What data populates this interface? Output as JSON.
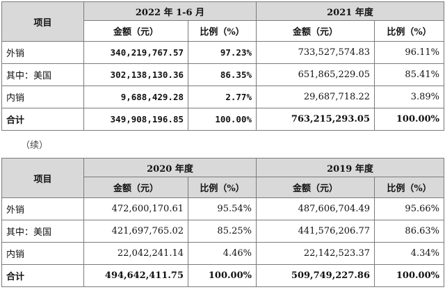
{
  "table1": {
    "corner": "项目",
    "period_a": "2022 年 1-6 月",
    "period_b": "2021 年度",
    "col_amount": "金额（元）",
    "col_ratio": "比例（%）",
    "rows": [
      {
        "label": "外销",
        "a_amount": "340,219,767.57",
        "a_ratio": "97.23%",
        "b_amount": "733,527,574.83",
        "b_ratio": "96.11%"
      },
      {
        "label": "其中：美国",
        "a_amount": "302,138,130.36",
        "a_ratio": "86.35%",
        "b_amount": "651,865,229.05",
        "b_ratio": "85.41%"
      },
      {
        "label": "内销",
        "a_amount": "9,688,429.28",
        "a_ratio": "2.77%",
        "b_amount": "29,687,718.22",
        "b_ratio": "3.89%"
      },
      {
        "label": "合计",
        "a_amount": "349,908,196.85",
        "a_ratio": "100.00%",
        "b_amount": "763,215,293.05",
        "b_ratio": "100.00%"
      }
    ]
  },
  "continued": "（续）",
  "table2": {
    "corner": "项目",
    "period_a": "2020 年度",
    "period_b": "2019 年度",
    "col_amount": "金额（元）",
    "col_ratio": "比例（%）",
    "rows": [
      {
        "label": "外销",
        "a_amount": "472,600,170.61",
        "a_ratio": "95.54%",
        "b_amount": "487,606,704.49",
        "b_ratio": "95.66%"
      },
      {
        "label": "其中：美国",
        "a_amount": "421,697,765.02",
        "a_ratio": "85.25%",
        "b_amount": "441,576,206.77",
        "b_ratio": "86.63%"
      },
      {
        "label": "内销",
        "a_amount": "22,042,241.14",
        "a_ratio": "4.46%",
        "b_amount": "22,142,523.37",
        "b_ratio": "4.34%"
      },
      {
        "label": "合计",
        "a_amount": "494,642,411.75",
        "a_ratio": "100.00%",
        "b_amount": "509,749,227.86",
        "b_ratio": "100.00%"
      }
    ]
  }
}
